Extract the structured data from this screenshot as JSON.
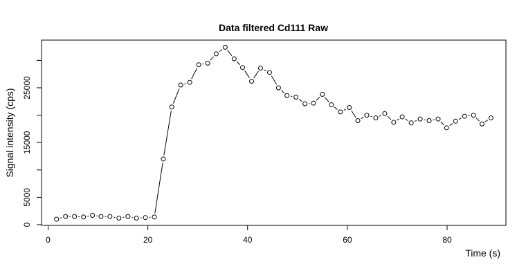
{
  "chart_data": {
    "type": "line",
    "title": "Data filtered Cd111 Raw",
    "xlabel": "Time (s)",
    "ylabel": "Signal intensity (cps)",
    "xlim": [
      0,
      92
    ],
    "ylim": [
      0,
      34000
    ],
    "xticks": [
      0,
      20,
      40,
      60,
      80
    ],
    "yticks": [
      0,
      5000,
      15000,
      25000
    ],
    "yticks_minor": [
      10000,
      20000,
      30000
    ],
    "grid": false,
    "marker": "open-circle",
    "series": [
      {
        "x": [
          1.7,
          3.5,
          5.3,
          7.1,
          8.9,
          10.6,
          12.4,
          14.2,
          16.0,
          17.7,
          19.5,
          21.3,
          23.1,
          24.8,
          26.6,
          28.4,
          30.2,
          32.0,
          33.7,
          35.5,
          37.3,
          39.0,
          40.8,
          42.6,
          44.4,
          46.2,
          47.9,
          49.7,
          51.5,
          53.2,
          55.0,
          56.8,
          58.6,
          60.4,
          62.1,
          63.9,
          65.7,
          67.5,
          69.3,
          71.0,
          72.8,
          74.6,
          76.4,
          78.2,
          79.9,
          81.7,
          83.5,
          85.3,
          87.0,
          88.8
        ],
        "y": [
          1000,
          1500,
          1500,
          1400,
          1700,
          1500,
          1500,
          1200,
          1500,
          1200,
          1300,
          1400,
          12000,
          21500,
          25500,
          26000,
          29200,
          29500,
          31200,
          32400,
          30300,
          28700,
          26200,
          28600,
          27800,
          25000,
          23600,
          23300,
          22100,
          22200,
          23800,
          21900,
          20600,
          21400,
          19000,
          20000,
          19500,
          20300,
          18700,
          19700,
          18600,
          19300,
          19000,
          19300,
          17700,
          18900,
          19800,
          20000,
          18400,
          19500
        ]
      }
    ]
  }
}
